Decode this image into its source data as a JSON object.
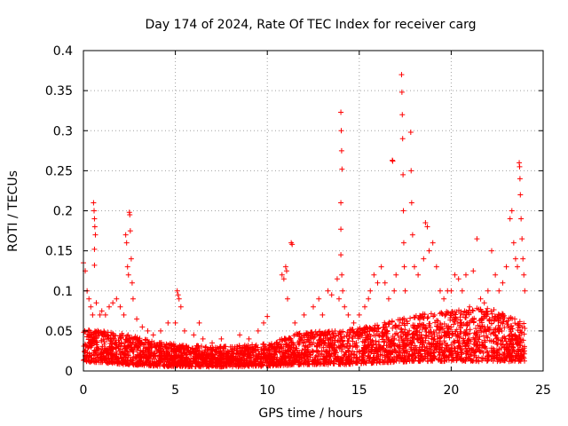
{
  "chart_data": {
    "type": "scatter",
    "title": "Day 174 of 2024, Rate Of TEC Index for receiver carg",
    "xlabel": "GPS time / hours",
    "ylabel": "ROTI / TECUs",
    "xlim": [
      0,
      25
    ],
    "ylim": [
      0,
      0.4
    ],
    "xticks": [
      0,
      5,
      10,
      15,
      20,
      25
    ],
    "xtick_labels": [
      "0",
      "5",
      "10",
      "15",
      "20",
      "25"
    ],
    "yticks": [
      0,
      0.05,
      0.1,
      0.15,
      0.2,
      0.25,
      0.3,
      0.35,
      0.4
    ],
    "ytick_labels": [
      "0",
      "0.05",
      "0.1",
      "0.15",
      "0.2",
      "0.25",
      "0.3",
      "0.35",
      "0.4"
    ],
    "grid": true,
    "marker": "+",
    "color": "#ff0000",
    "series": [
      {
        "name": "ROTI",
        "points": [
          [
            0.0,
            0.135
          ],
          [
            0.1,
            0.125
          ],
          [
            0.2,
            0.1
          ],
          [
            0.3,
            0.09
          ],
          [
            0.4,
            0.08
          ],
          [
            0.5,
            0.07
          ],
          [
            0.55,
            0.21
          ],
          [
            0.58,
            0.2
          ],
          [
            0.6,
            0.19
          ],
          [
            0.62,
            0.18
          ],
          [
            0.65,
            0.17
          ],
          [
            0.6,
            0.152
          ],
          [
            0.6,
            0.132
          ],
          [
            0.7,
            0.085
          ],
          [
            0.9,
            0.07
          ],
          [
            1.0,
            0.075
          ],
          [
            1.2,
            0.07
          ],
          [
            1.4,
            0.08
          ],
          [
            1.6,
            0.085
          ],
          [
            1.8,
            0.09
          ],
          [
            2.0,
            0.08
          ],
          [
            2.2,
            0.07
          ],
          [
            2.3,
            0.17
          ],
          [
            2.35,
            0.16
          ],
          [
            2.4,
            0.13
          ],
          [
            2.45,
            0.12
          ],
          [
            2.5,
            0.198
          ],
          [
            2.52,
            0.195
          ],
          [
            2.55,
            0.175
          ],
          [
            2.6,
            0.14
          ],
          [
            2.65,
            0.11
          ],
          [
            2.7,
            0.09
          ],
          [
            2.9,
            0.065
          ],
          [
            3.2,
            0.055
          ],
          [
            3.5,
            0.05
          ],
          [
            3.8,
            0.045
          ],
          [
            4.2,
            0.05
          ],
          [
            4.6,
            0.06
          ],
          [
            5.0,
            0.06
          ],
          [
            5.1,
            0.1
          ],
          [
            5.15,
            0.095
          ],
          [
            5.2,
            0.09
          ],
          [
            5.3,
            0.08
          ],
          [
            5.5,
            0.05
          ],
          [
            6.0,
            0.045
          ],
          [
            6.3,
            0.06
          ],
          [
            6.5,
            0.04
          ],
          [
            7.0,
            0.035
          ],
          [
            7.5,
            0.04
          ],
          [
            8.0,
            0.03
          ],
          [
            8.5,
            0.045
          ],
          [
            9.0,
            0.04
          ],
          [
            9.5,
            0.05
          ],
          [
            9.8,
            0.06
          ],
          [
            10.0,
            0.068
          ],
          [
            10.2,
            0.03
          ],
          [
            10.5,
            0.025
          ],
          [
            10.8,
            0.12
          ],
          [
            10.9,
            0.115
          ],
          [
            11.0,
            0.13
          ],
          [
            11.05,
            0.125
          ],
          [
            11.1,
            0.09
          ],
          [
            11.3,
            0.16
          ],
          [
            11.35,
            0.158
          ],
          [
            11.5,
            0.06
          ],
          [
            12.0,
            0.07
          ],
          [
            12.5,
            0.08
          ],
          [
            12.8,
            0.09
          ],
          [
            13.0,
            0.07
          ],
          [
            13.3,
            0.1
          ],
          [
            13.5,
            0.095
          ],
          [
            13.8,
            0.115
          ],
          [
            13.9,
            0.09
          ],
          [
            14.0,
            0.323
          ],
          [
            14.02,
            0.3
          ],
          [
            14.04,
            0.275
          ],
          [
            14.06,
            0.252
          ],
          [
            14.0,
            0.21
          ],
          [
            14.0,
            0.177
          ],
          [
            14.0,
            0.145
          ],
          [
            14.05,
            0.12
          ],
          [
            14.1,
            0.1
          ],
          [
            14.2,
            0.08
          ],
          [
            14.4,
            0.07
          ],
          [
            14.7,
            0.06
          ],
          [
            15.0,
            0.07
          ],
          [
            15.3,
            0.08
          ],
          [
            15.5,
            0.09
          ],
          [
            15.6,
            0.1
          ],
          [
            15.8,
            0.12
          ],
          [
            16.0,
            0.11
          ],
          [
            16.2,
            0.13
          ],
          [
            16.4,
            0.11
          ],
          [
            16.6,
            0.09
          ],
          [
            16.8,
            0.263
          ],
          [
            16.82,
            0.262
          ],
          [
            16.9,
            0.1
          ],
          [
            17.0,
            0.12
          ],
          [
            17.3,
            0.37
          ],
          [
            17.32,
            0.348
          ],
          [
            17.34,
            0.32
          ],
          [
            17.36,
            0.29
          ],
          [
            17.38,
            0.245
          ],
          [
            17.4,
            0.2
          ],
          [
            17.42,
            0.16
          ],
          [
            17.45,
            0.13
          ],
          [
            17.5,
            0.1
          ],
          [
            17.8,
            0.298
          ],
          [
            17.82,
            0.25
          ],
          [
            17.85,
            0.21
          ],
          [
            17.9,
            0.17
          ],
          [
            18.0,
            0.13
          ],
          [
            18.2,
            0.12
          ],
          [
            18.5,
            0.14
          ],
          [
            18.6,
            0.185
          ],
          [
            18.7,
            0.18
          ],
          [
            18.8,
            0.15
          ],
          [
            19.0,
            0.16
          ],
          [
            19.2,
            0.13
          ],
          [
            19.4,
            0.1
          ],
          [
            19.6,
            0.09
          ],
          [
            19.8,
            0.1
          ],
          [
            20.0,
            0.1
          ],
          [
            20.2,
            0.12
          ],
          [
            20.4,
            0.115
          ],
          [
            20.6,
            0.1
          ],
          [
            20.8,
            0.12
          ],
          [
            21.0,
            0.08
          ],
          [
            21.2,
            0.125
          ],
          [
            21.4,
            0.165
          ],
          [
            21.6,
            0.09
          ],
          [
            21.8,
            0.085
          ],
          [
            22.0,
            0.1
          ],
          [
            22.2,
            0.15
          ],
          [
            22.4,
            0.12
          ],
          [
            22.6,
            0.1
          ],
          [
            22.8,
            0.11
          ],
          [
            23.0,
            0.13
          ],
          [
            23.2,
            0.19
          ],
          [
            23.3,
            0.2
          ],
          [
            23.4,
            0.16
          ],
          [
            23.5,
            0.14
          ],
          [
            23.6,
            0.13
          ],
          [
            23.7,
            0.26
          ],
          [
            23.72,
            0.255
          ],
          [
            23.74,
            0.24
          ],
          [
            23.76,
            0.22
          ],
          [
            23.8,
            0.19
          ],
          [
            23.85,
            0.165
          ],
          [
            23.9,
            0.14
          ],
          [
            23.95,
            0.12
          ],
          [
            24.0,
            0.1
          ]
        ]
      }
    ],
    "dense_band": {
      "hour_start": 0,
      "hour_end": 24,
      "samples_per_hour": 140,
      "baseline_bands": [
        [
          0,
          0.012,
          0.052
        ],
        [
          2,
          0.008,
          0.048
        ],
        [
          4,
          0.006,
          0.036
        ],
        [
          7,
          0.005,
          0.03
        ],
        [
          10,
          0.006,
          0.034
        ],
        [
          12,
          0.008,
          0.05
        ],
        [
          14,
          0.008,
          0.05
        ],
        [
          16,
          0.01,
          0.058
        ],
        [
          18,
          0.012,
          0.07
        ],
        [
          20,
          0.012,
          0.075
        ],
        [
          22,
          0.012,
          0.08
        ],
        [
          24,
          0.012,
          0.06
        ]
      ]
    }
  }
}
